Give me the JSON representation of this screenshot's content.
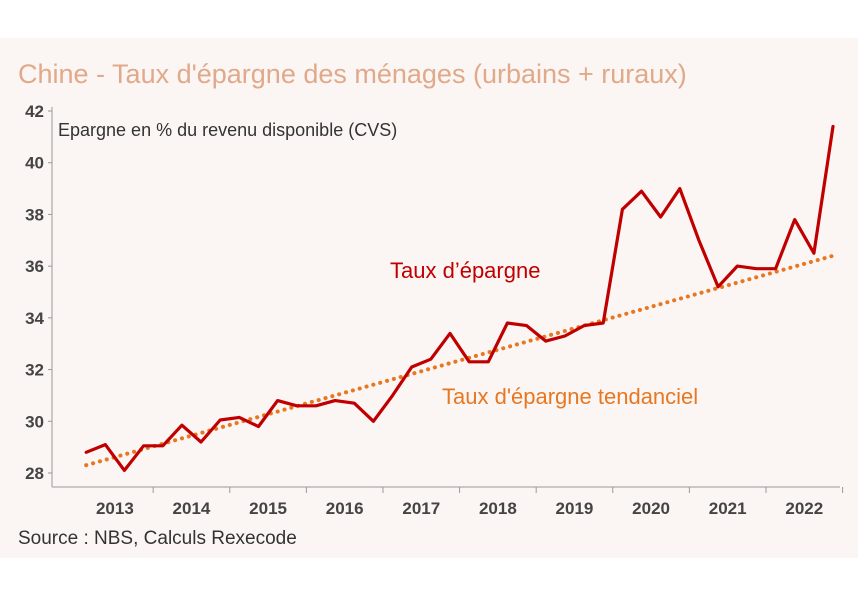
{
  "chart_data": {
    "type": "line",
    "title": "Chine - Taux d'épargne des ménages (urbains + ruraux)",
    "ylabel": "Epargne en % du revenu disponible (CVS)",
    "source": "Source : NBS, Calculs Rexecode",
    "ylim": [
      28,
      42
    ],
    "yticks": [
      28,
      30,
      32,
      34,
      36,
      38,
      40,
      42
    ],
    "xlim": [
      2012.75,
      2022.75
    ],
    "years": [
      "2013",
      "2014",
      "2015",
      "2016",
      "2017",
      "2018",
      "2019",
      "2020",
      "2021",
      "2022"
    ],
    "grid": false,
    "colors": {
      "main": "#c00000",
      "trend": "#e87722"
    },
    "series": [
      {
        "name": "Taux d’épargne",
        "style": "solid",
        "x": [
          2013.0,
          2013.25,
          2013.5,
          2013.75,
          2014.0,
          2014.25,
          2014.5,
          2014.75,
          2015.0,
          2015.25,
          2015.5,
          2015.75,
          2016.0,
          2016.25,
          2016.5,
          2016.75,
          2017.0,
          2017.25,
          2017.5,
          2017.75,
          2018.0,
          2018.25,
          2018.5,
          2018.75,
          2019.0,
          2019.25,
          2019.5,
          2019.75,
          2020.0,
          2020.25,
          2020.5,
          2020.75,
          2021.0,
          2021.25,
          2021.5,
          2021.75,
          2022.0,
          2022.25,
          2022.5,
          2022.75
        ],
        "values": [
          28.8,
          29.1,
          28.1,
          29.05,
          29.05,
          29.85,
          29.2,
          30.05,
          30.15,
          29.8,
          30.8,
          30.6,
          30.6,
          30.8,
          30.7,
          30.0,
          31.0,
          32.1,
          32.4,
          33.4,
          32.3,
          32.3,
          33.8,
          33.7,
          33.1,
          33.3,
          33.7,
          33.8,
          38.2,
          38.9,
          37.9,
          39.0,
          37.0,
          35.2,
          36.0,
          35.9,
          35.9,
          37.8,
          36.5,
          41.4
        ]
      },
      {
        "name": "Taux d'épargne tendanciel",
        "style": "dotted",
        "x": [
          2013.0,
          2022.75
        ],
        "values": [
          28.3,
          36.4
        ]
      }
    ]
  }
}
